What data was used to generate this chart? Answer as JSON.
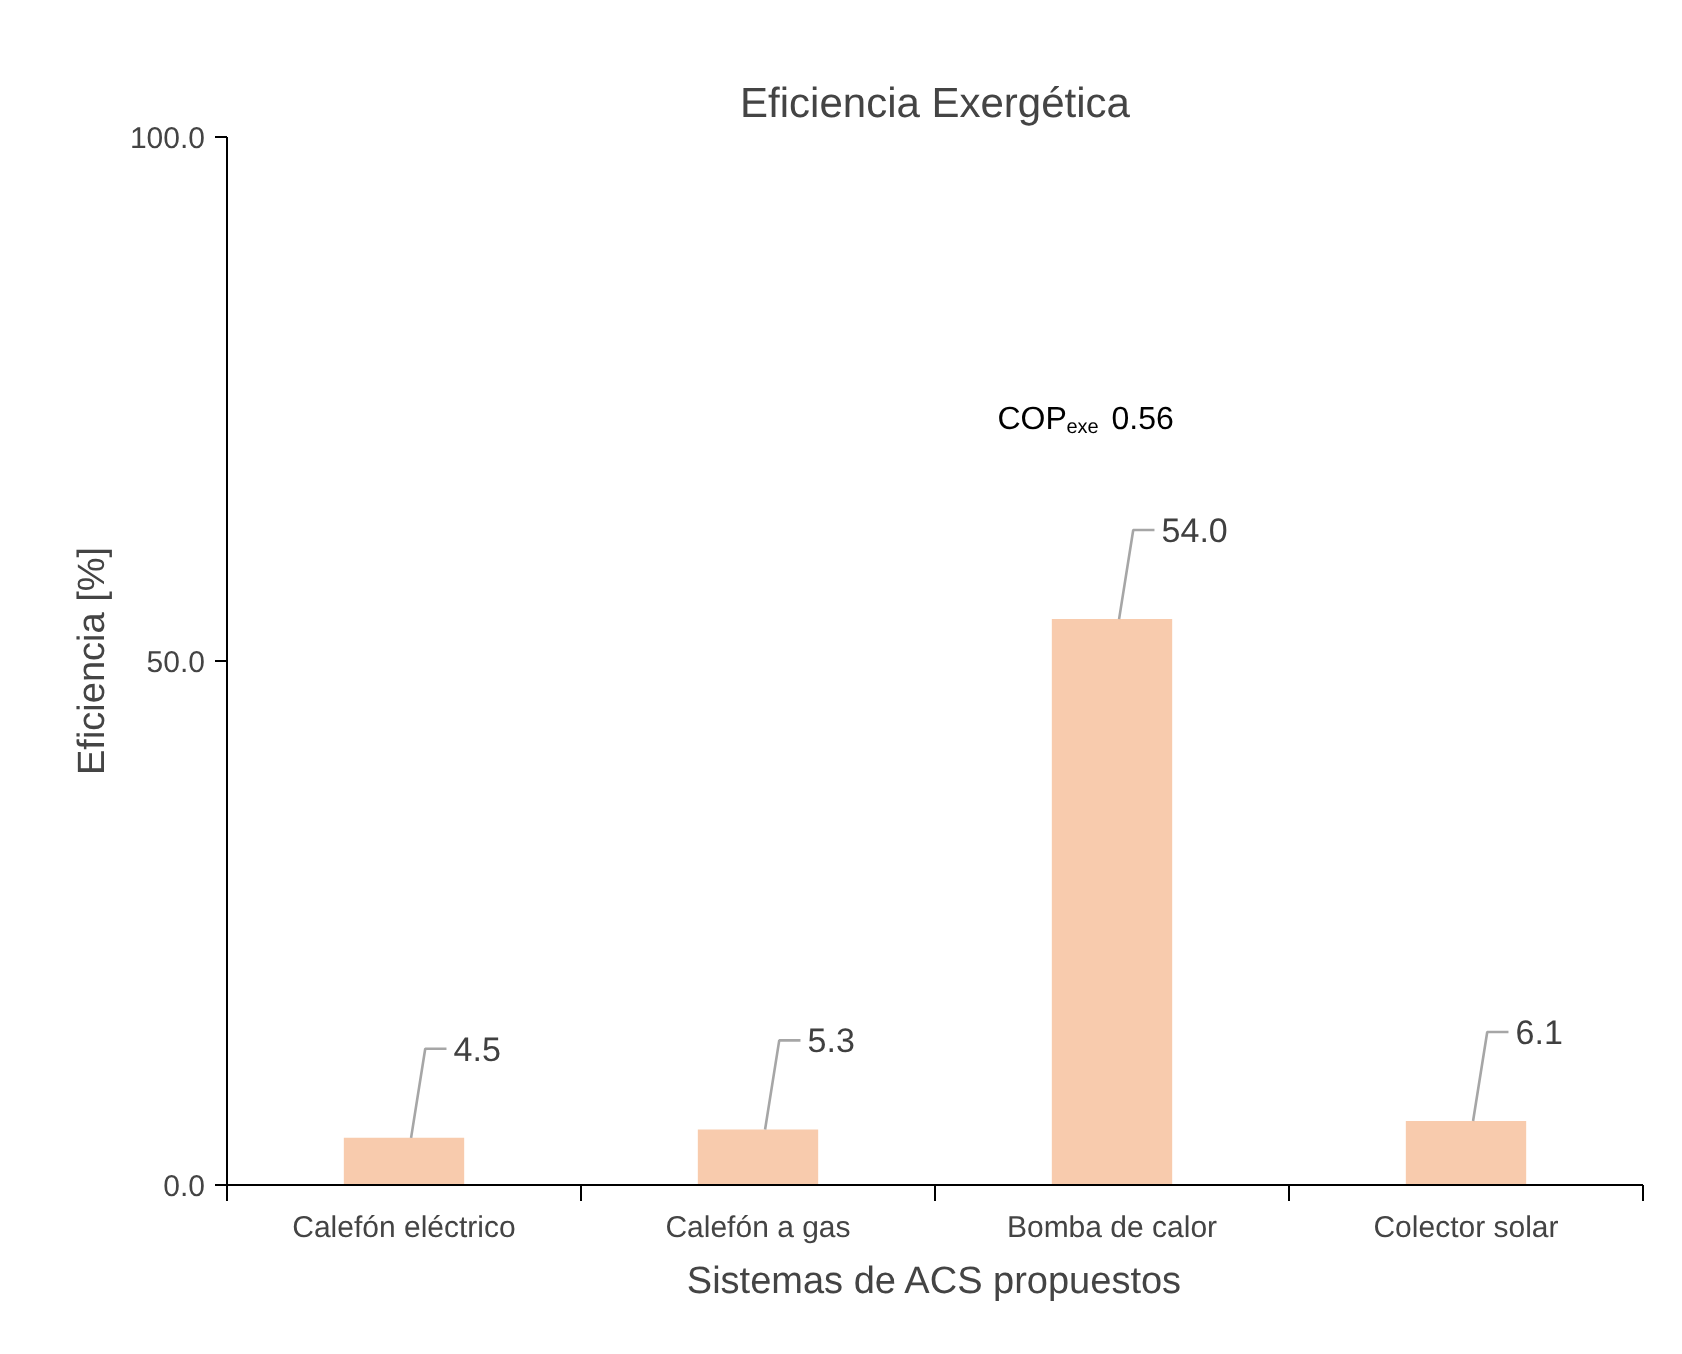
{
  "chart_data": {
    "type": "bar",
    "title": "Eficiencia Exergética",
    "xlabel": "Sistemas de ACS propuestos",
    "ylabel": "Eficiencia [%]",
    "categories": [
      "Calefón eléctrico",
      "Calefón a gas",
      "Bomba de calor",
      "Colector solar"
    ],
    "values": [
      4.5,
      5.3,
      54.0,
      6.1
    ],
    "value_labels": [
      "4.5",
      "5.3",
      "54.0",
      "6.1"
    ],
    "color": "#f8cbad",
    "ylim": [
      0,
      100
    ],
    "yticks": [
      {
        "value": 0,
        "label": "0.0"
      },
      {
        "value": 50,
        "label": "50.0"
      },
      {
        "value": 100,
        "label": "100.0"
      }
    ],
    "grid": false,
    "annotations": [
      "COP$_{exe}$ 0.56"
    ]
  }
}
